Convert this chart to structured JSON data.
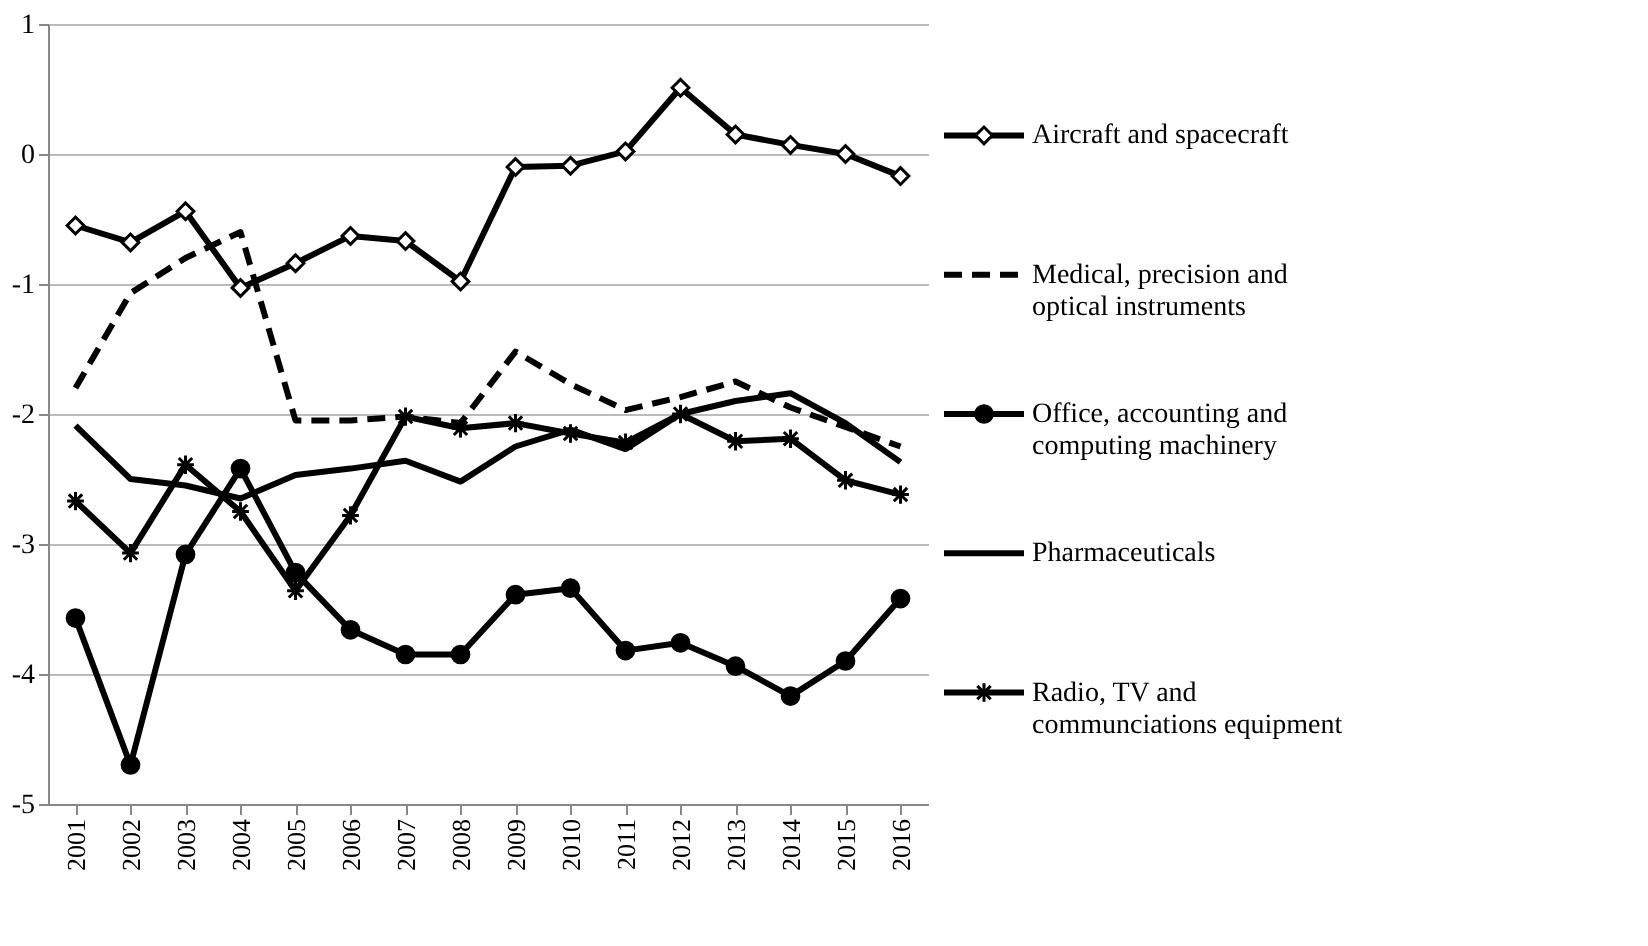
{
  "chart_data": {
    "type": "line",
    "categories": [
      "2001",
      "2002",
      "2003",
      "2004",
      "2005",
      "2006",
      "2007",
      "2008",
      "2009",
      "2010",
      "2011",
      "2012",
      "2013",
      "2014",
      "2015",
      "2016"
    ],
    "ylim": [
      -5,
      1
    ],
    "yticks": [
      -5,
      -4,
      -3,
      -2,
      -1,
      0,
      1
    ],
    "grid": "y",
    "legend": "right",
    "series": [
      {
        "name": "Aircraft and spacecraft",
        "color": "#000000",
        "marker": "diamond",
        "line_style": "solid",
        "values": [
          -0.55,
          -0.68,
          -0.44,
          -1.03,
          -0.84,
          -0.63,
          -0.67,
          -0.98,
          -0.1,
          -0.09,
          0.02,
          0.51,
          0.15,
          0.07,
          0.0,
          -0.17
        ]
      },
      {
        "name": "Medical, precision and optical instruments",
        "color": "#000000",
        "marker": "none",
        "line_style": "dashed",
        "values": [
          -1.8,
          -1.07,
          -0.8,
          -0.6,
          -2.05,
          -2.05,
          -2.02,
          -2.07,
          -1.52,
          -1.77,
          -1.97,
          -1.87,
          -1.75,
          -1.95,
          -2.1,
          -2.25
        ]
      },
      {
        "name": "Office, accounting and computing machinery",
        "color": "#000000",
        "marker": "circle",
        "line_style": "solid",
        "values": [
          -3.57,
          -4.7,
          -3.08,
          -2.42,
          -3.22,
          -3.66,
          -3.85,
          -3.85,
          -3.39,
          -3.34,
          -3.82,
          -3.76,
          -3.94,
          -4.17,
          -3.9,
          -3.42
        ]
      },
      {
        "name": "Pharmaceuticals",
        "color": "#000000",
        "marker": "none",
        "line_style": "solid",
        "values": [
          -2.09,
          -2.5,
          -2.55,
          -2.65,
          -2.47,
          -2.42,
          -2.36,
          -2.52,
          -2.25,
          -2.12,
          -2.27,
          -2.0,
          -1.9,
          -1.84,
          -2.07,
          -2.37
        ]
      },
      {
        "name": "Radio, TV and communciations equipment",
        "color": "#000000",
        "marker": "cross",
        "line_style": "solid",
        "values": [
          -2.67,
          -3.07,
          -2.39,
          -2.75,
          -3.36,
          -2.78,
          -2.02,
          -2.11,
          -2.07,
          -2.15,
          -2.22,
          -2.0,
          -2.21,
          -2.19,
          -2.51,
          -2.62
        ]
      }
    ]
  }
}
